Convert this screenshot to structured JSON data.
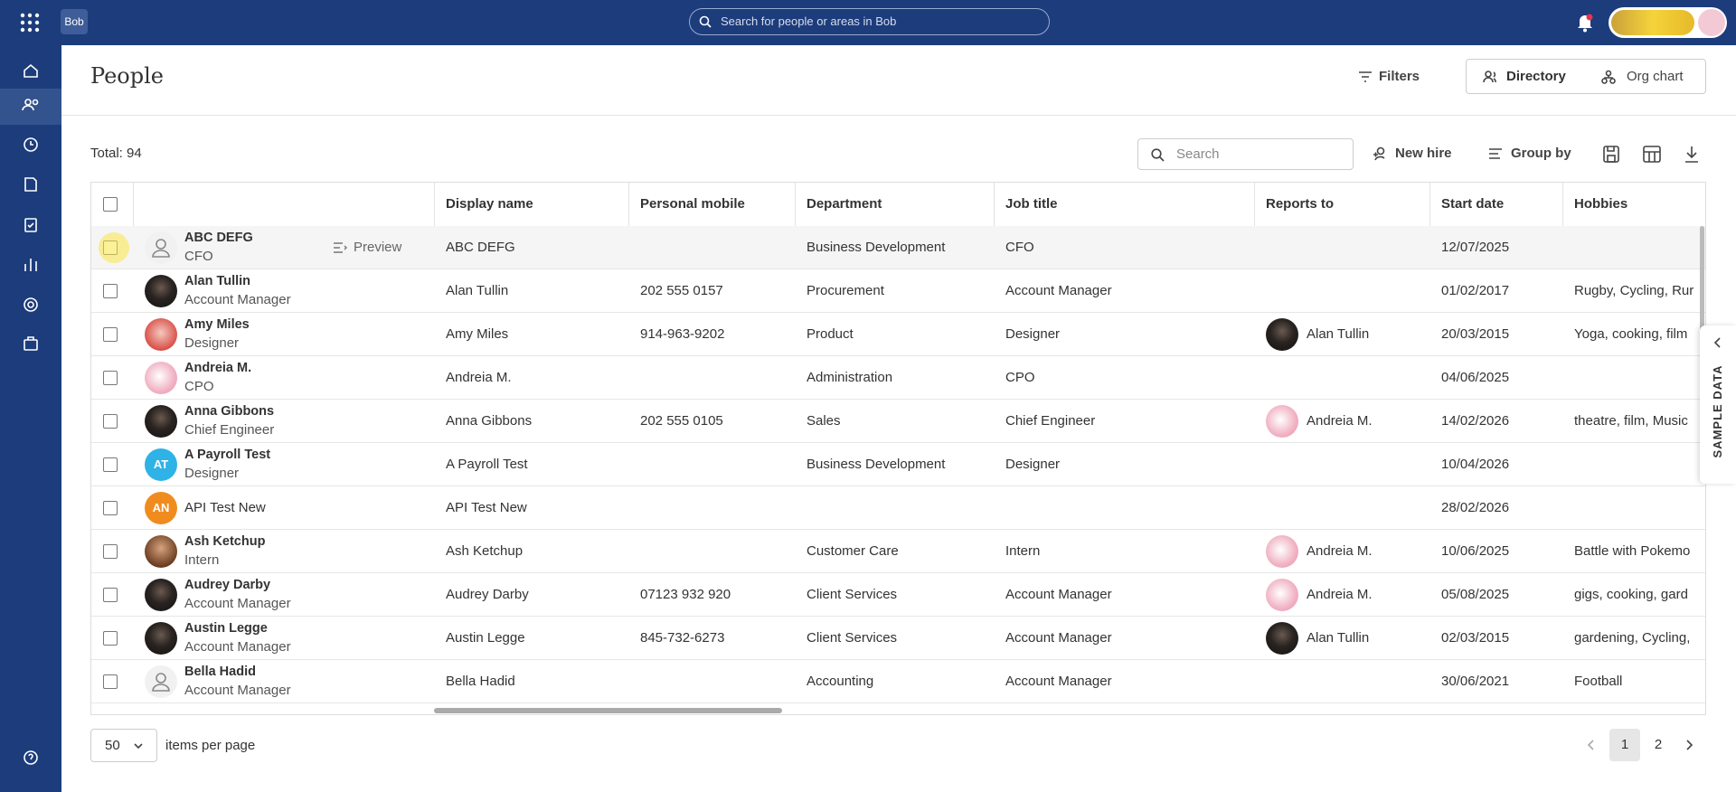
{
  "top_bar": {
    "logo": "Bob",
    "search_placeholder": "Search for people or areas in Bob"
  },
  "page": {
    "title": "People",
    "filters": "Filters",
    "views": [
      "Directory",
      "Org chart"
    ]
  },
  "toolbar": {
    "total": "Total: 94",
    "search_placeholder": "Search",
    "new_hire": "New hire",
    "group_by": "Group by"
  },
  "table": {
    "columns": [
      "Display name",
      "Personal mobile",
      "Department",
      "Job title",
      "Reports to",
      "Start date",
      "Hobbies"
    ],
    "preview": "Preview",
    "rows": [
      {
        "name": "ABC DEFG",
        "role": "CFO",
        "display_name": "ABC DEFG",
        "department": "Business Development",
        "job_title": "CFO",
        "start_date": "12/07/2025"
      },
      {
        "name": "Alan Tullin",
        "role": "Account Manager",
        "display_name": "Alan Tullin",
        "mobile": "202 555 0157",
        "department": "Procurement",
        "job_title": "Account Manager",
        "start_date": "01/02/2017",
        "hobbies": "Rugby, Cycling, Rur"
      },
      {
        "name": "Amy Miles",
        "role": "Designer",
        "display_name": "Amy Miles",
        "mobile": "914-963-9202",
        "department": "Product",
        "job_title": "Designer",
        "reports_to": "Alan Tullin",
        "start_date": "20/03/2015",
        "hobbies": "Yoga, cooking, film"
      },
      {
        "name": "Andreia M.",
        "role": "CPO",
        "display_name": "Andreia M.",
        "department": "Administration",
        "job_title": "CPO",
        "start_date": "04/06/2025"
      },
      {
        "name": "Anna Gibbons",
        "role": "Chief Engineer",
        "display_name": "Anna Gibbons",
        "mobile": "202 555 0105",
        "department": "Sales",
        "job_title": "Chief Engineer",
        "reports_to": "Andreia M.",
        "start_date": "14/02/2026",
        "hobbies": "theatre, film, Music"
      },
      {
        "name": "A Payroll Test",
        "role": "Designer",
        "initials": "AT",
        "display_name": "A Payroll Test",
        "department": "Business Development",
        "job_title": "Designer",
        "start_date": "10/04/2026"
      },
      {
        "name": "API Test New",
        "initials": "AN",
        "display_name": "API Test New",
        "start_date": "28/02/2026"
      },
      {
        "name": "Ash Ketchup",
        "role": "Intern",
        "display_name": "Ash Ketchup",
        "department": "Customer Care",
        "job_title": "Intern",
        "reports_to": "Andreia M.",
        "start_date": "10/06/2025",
        "hobbies": "Battle with Pokemo"
      },
      {
        "name": "Audrey Darby",
        "role": "Account Manager",
        "display_name": "Audrey Darby",
        "mobile": "07123 932 920",
        "department": "Client Services",
        "job_title": "Account Manager",
        "reports_to": "Andreia M.",
        "start_date": "05/08/2025",
        "hobbies": "gigs, cooking, gard"
      },
      {
        "name": "Austin Legge",
        "role": "Account Manager",
        "display_name": "Austin Legge",
        "mobile": "845-732-6273",
        "department": "Client Services",
        "job_title": "Account Manager",
        "reports_to": "Alan Tullin",
        "start_date": "02/03/2015",
        "hobbies": "gardening, Cycling,"
      },
      {
        "name": "Bella Hadid",
        "role": "Account Manager",
        "display_name": "Bella Hadid",
        "department": "Accounting",
        "job_title": "Account Manager",
        "start_date": "30/06/2021",
        "hobbies": "Football"
      }
    ]
  },
  "side_tab": "SAMPLE DATA",
  "pagination": {
    "page_size": "50",
    "label": "items per page",
    "pages": [
      "1",
      "2"
    ]
  }
}
